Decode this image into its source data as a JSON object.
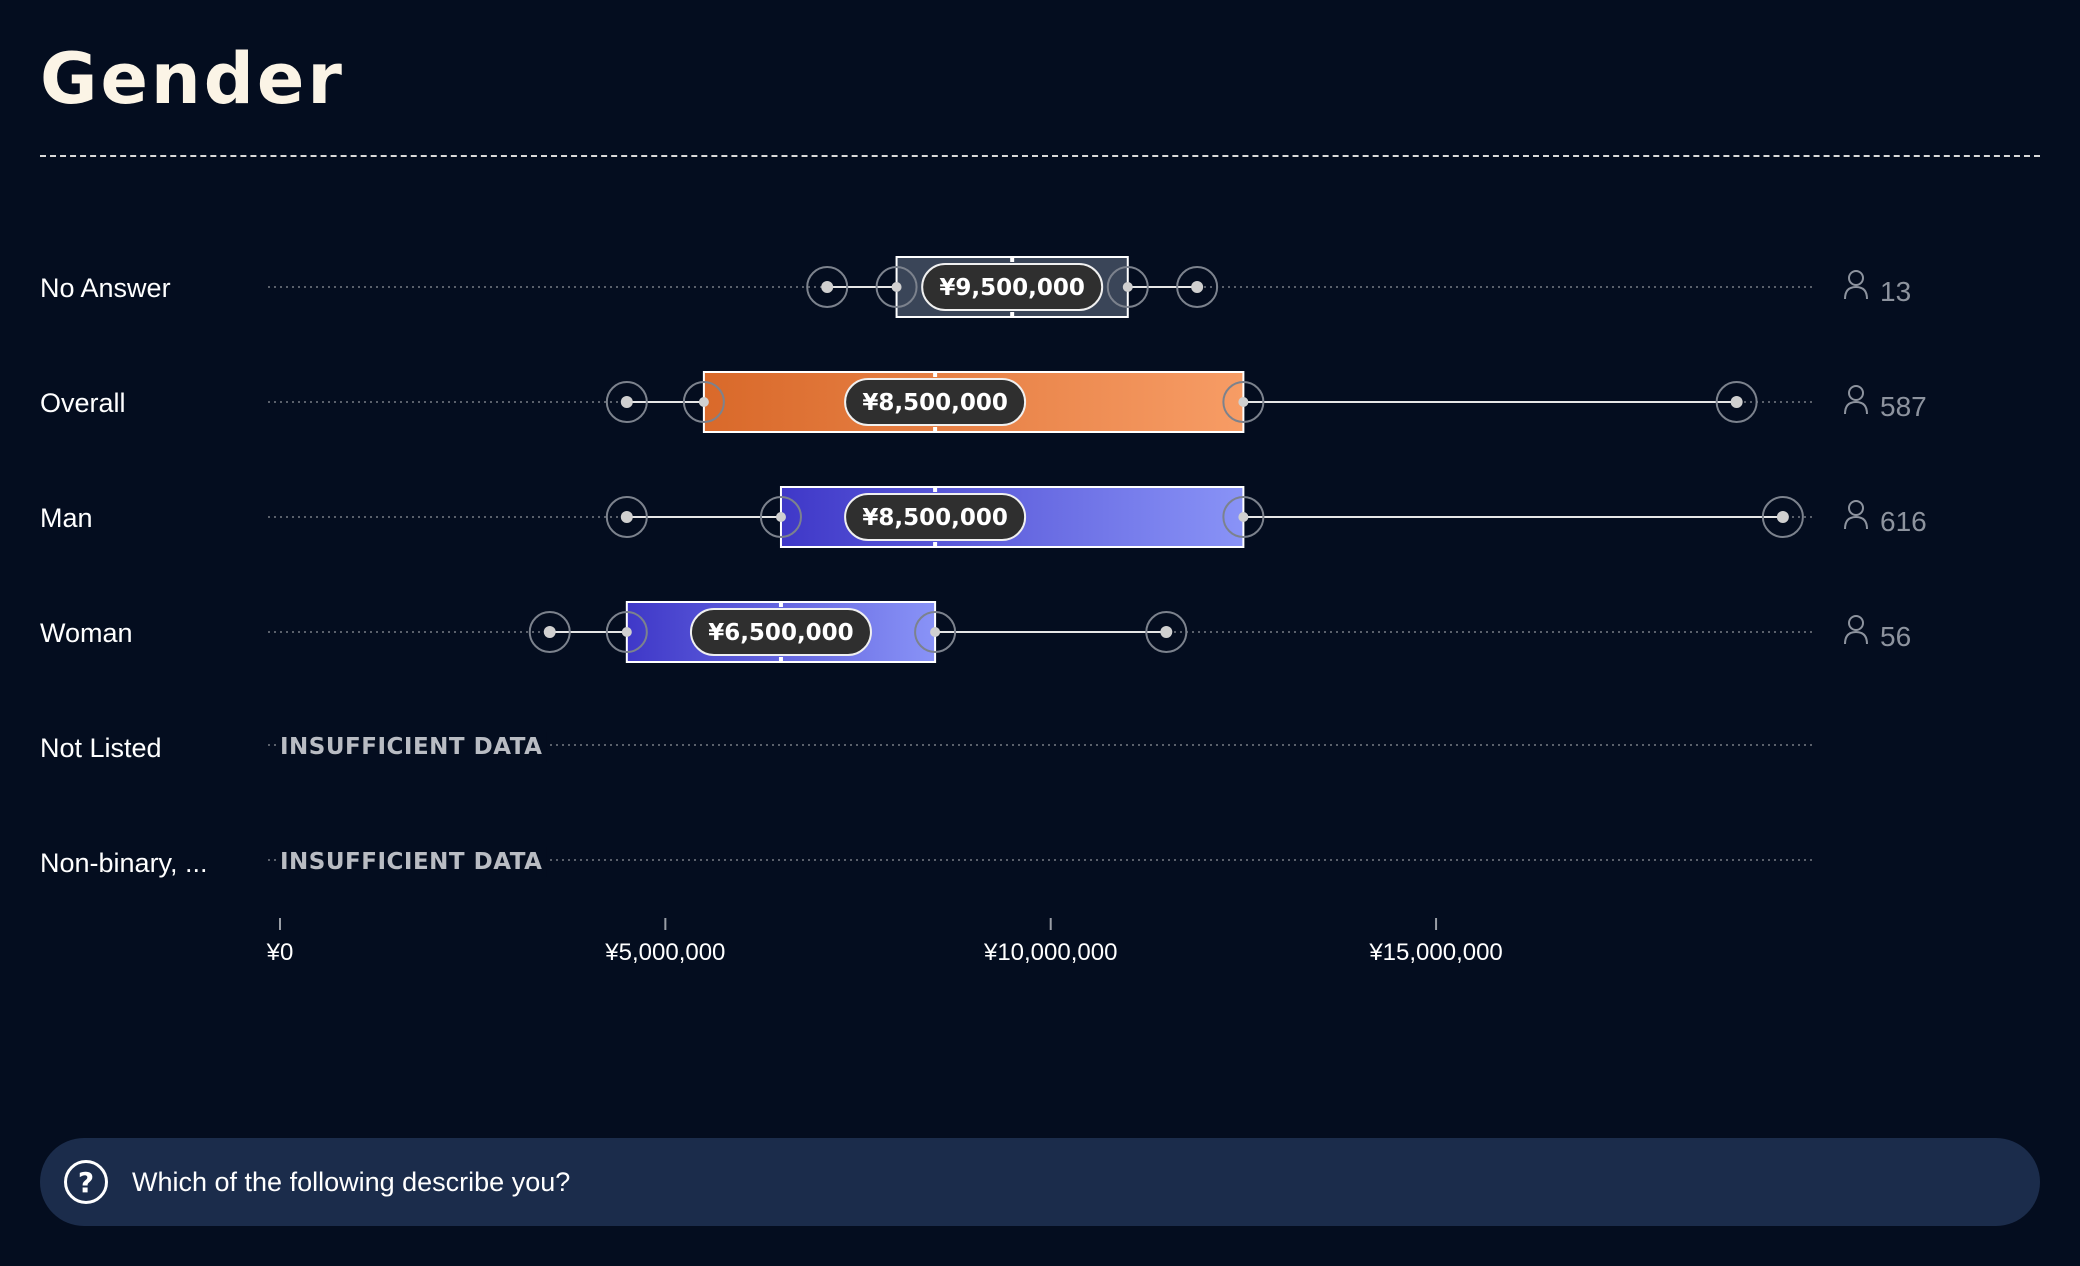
{
  "chart_data": {
    "type": "boxplot",
    "title": "Gender",
    "xlim": [
      0,
      19800000
    ],
    "x_ticks": [
      {
        "value": 0,
        "label": "¥0"
      },
      {
        "value": 5000000,
        "label": "¥5,000,000"
      },
      {
        "value": 10000000,
        "label": "¥10,000,000"
      },
      {
        "value": 15000000,
        "label": "¥15,000,000"
      }
    ],
    "insufficient_label": "INSUFFICIENT DATA",
    "series": [
      {
        "name": "No Answer",
        "color": "#3a4558",
        "p10": 7100000,
        "p25": 8000000,
        "median": 9500000,
        "p75": 11000000,
        "p90": 11900000,
        "median_label": "¥9,500,000",
        "count": "13"
      },
      {
        "name": "Overall",
        "color": "orange",
        "p10": 4500000,
        "p25": 5500000,
        "median": 8500000,
        "p75": 12500000,
        "p90": 18900000,
        "median_label": "¥8,500,000",
        "count": "587"
      },
      {
        "name": "Man",
        "color": "blue",
        "p10": 4500000,
        "p25": 6500000,
        "median": 8500000,
        "p75": 12500000,
        "p90": 19500000,
        "median_label": "¥8,500,000",
        "count": "616"
      },
      {
        "name": "Woman",
        "color": "blue",
        "p10": 3500000,
        "p25": 4500000,
        "median": 6500000,
        "p75": 8500000,
        "p90": 11500000,
        "median_label": "¥6,500,000",
        "count": "56"
      },
      {
        "name": "Not Listed",
        "insufficient": true
      },
      {
        "name": "Non-binary, ...",
        "insufficient": true
      }
    ]
  },
  "footer": {
    "question": "Which of the following describe you?",
    "icon": "question-circle-icon"
  }
}
